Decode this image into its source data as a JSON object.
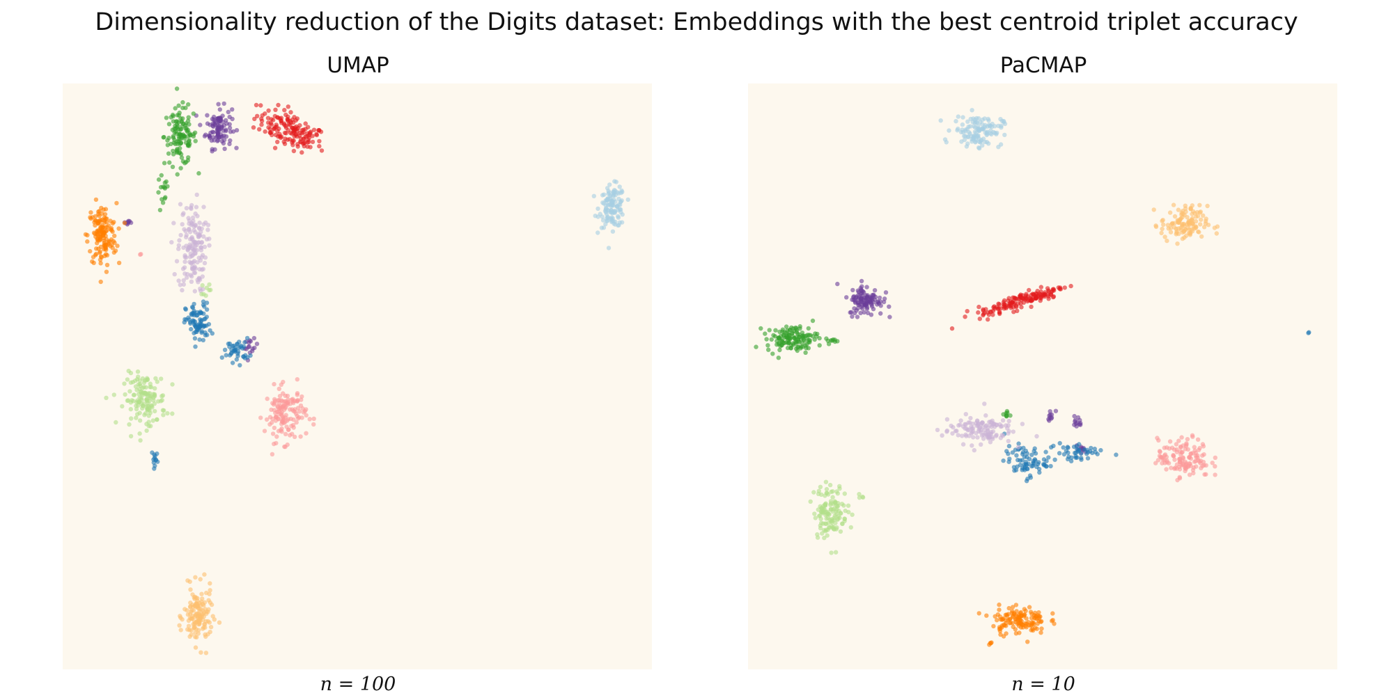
{
  "figure": {
    "title": "Dimensionality reduction of the Digits dataset: Embeddings with the best centroid triplet accuracy"
  },
  "colors": {
    "background": "#fdf8ee",
    "palette": [
      "#1f78b4",
      "#a6cee3",
      "#33a02c",
      "#b2df8a",
      "#e31a1c",
      "#fb9a99",
      "#ff7f00",
      "#fdbf6f",
      "#6a3d9a",
      "#cab2d6"
    ]
  },
  "chart_data": [
    {
      "type": "scatter",
      "title": "UMAP",
      "xlabel": "n = 100",
      "ylabel": "",
      "xlim": [
        0,
        100
      ],
      "ylim": [
        0,
        100
      ],
      "grid": false,
      "legend": "none",
      "series": [
        {
          "color": "#e31a1c",
          "clusters": [
            {
              "cx": 38.5,
              "cy": 92,
              "rx": 5.5,
              "ry": 2.6,
              "n": 150,
              "rot": -25
            }
          ]
        },
        {
          "color": "#6a3d9a",
          "clusters": [
            {
              "cx": 26.5,
              "cy": 92.5,
              "rx": 2.0,
              "ry": 3.2,
              "n": 100
            },
            {
              "cx": 32,
              "cy": 55,
              "rx": 1.0,
              "ry": 1.2,
              "n": 15
            },
            {
              "cx": 11,
              "cy": 76.3,
              "rx": 0.8,
              "ry": 0.5,
              "n": 8
            }
          ]
        },
        {
          "color": "#33a02c",
          "clusters": [
            {
              "cx": 20,
              "cy": 91,
              "rx": 2.5,
              "ry": 4.5,
              "n": 120
            },
            {
              "cx": 17,
              "cy": 81,
              "rx": 0.9,
              "ry": 3.2,
              "n": 15
            }
          ]
        },
        {
          "color": "#a6cee3",
          "clusters": [
            {
              "cx": 93.3,
              "cy": 79,
              "rx": 2.0,
              "ry": 3.2,
              "n": 120
            }
          ]
        },
        {
          "color": "#ff7f00",
          "clusters": [
            {
              "cx": 6.7,
              "cy": 74,
              "rx": 2.2,
              "ry": 5.0,
              "n": 140
            }
          ]
        },
        {
          "color": "#cab2d6",
          "clusters": [
            {
              "cx": 22,
              "cy": 72,
              "rx": 2.2,
              "ry": 7.0,
              "n": 150
            }
          ]
        },
        {
          "color": "#1f78b4",
          "clusters": [
            {
              "cx": 23,
              "cy": 59,
              "rx": 1.9,
              "ry": 3.2,
              "n": 80
            },
            {
              "cx": 29.5,
              "cy": 54.5,
              "rx": 2.0,
              "ry": 1.8,
              "n": 40
            },
            {
              "cx": 15.7,
              "cy": 36,
              "rx": 0.5,
              "ry": 1.5,
              "n": 12
            }
          ]
        },
        {
          "color": "#b2df8a",
          "clusters": [
            {
              "cx": 14,
              "cy": 46,
              "rx": 3.2,
              "ry": 4.0,
              "n": 140
            },
            {
              "cx": 24.4,
              "cy": 65,
              "rx": 0.7,
              "ry": 1.0,
              "n": 8
            }
          ]
        },
        {
          "color": "#fb9a99",
          "clusters": [
            {
              "cx": 37.8,
              "cy": 43.5,
              "rx": 3.2,
              "ry": 4.2,
              "n": 140
            },
            {
              "cx": 13,
              "cy": 71,
              "rx": 0.3,
              "ry": 0.3,
              "n": 2
            }
          ]
        },
        {
          "color": "#fdbf6f",
          "clusters": [
            {
              "cx": 23,
              "cy": 9,
              "rx": 2.2,
              "ry": 4.5,
              "n": 140
            }
          ]
        }
      ]
    },
    {
      "type": "scatter",
      "title": "PaCMAP",
      "xlabel": "n = 10",
      "ylabel": "",
      "xlim": [
        0,
        100
      ],
      "ylim": [
        0,
        100
      ],
      "grid": false,
      "legend": "none",
      "series": [
        {
          "color": "#a6cee3",
          "clusters": [
            {
              "cx": 39,
              "cy": 92,
              "rx": 3.8,
              "ry": 2.4,
              "n": 120
            }
          ]
        },
        {
          "color": "#fdbf6f",
          "clusters": [
            {
              "cx": 74,
              "cy": 76,
              "rx": 3.6,
              "ry": 2.8,
              "n": 120
            }
          ]
        },
        {
          "color": "#e31a1c",
          "clusters": [
            {
              "cx": 46.5,
              "cy": 63,
              "rx": 7.0,
              "ry": 1.1,
              "n": 150,
              "rot": 18
            }
          ]
        },
        {
          "color": "#6a3d9a",
          "clusters": [
            {
              "cx": 20,
              "cy": 63,
              "rx": 2.6,
              "ry": 2.4,
              "n": 110
            },
            {
              "cx": 51.5,
              "cy": 43.5,
              "rx": 1.2,
              "ry": 0.7,
              "n": 10
            },
            {
              "cx": 55.8,
              "cy": 42.2,
              "rx": 0.7,
              "ry": 1.0,
              "n": 12
            },
            {
              "cx": 56.5,
              "cy": 37.5,
              "rx": 0.9,
              "ry": 0.6,
              "n": 10
            }
          ]
        },
        {
          "color": "#33a02c",
          "clusters": [
            {
              "cx": 7.5,
              "cy": 56.5,
              "rx": 4.0,
              "ry": 2.0,
              "n": 130
            },
            {
              "cx": 14.5,
              "cy": 56,
              "rx": 0.7,
              "ry": 0.5,
              "n": 8
            },
            {
              "cx": 43.7,
              "cy": 43.5,
              "rx": 0.9,
              "ry": 0.5,
              "n": 8
            }
          ]
        },
        {
          "color": "#1f78b4",
          "clusters": [
            {
              "cx": 95.2,
              "cy": 57.5,
              "rx": 0.2,
              "ry": 0.2,
              "n": 2
            },
            {
              "cx": 47,
              "cy": 35.5,
              "rx": 3.2,
              "ry": 2.4,
              "n": 70
            },
            {
              "cx": 55.5,
              "cy": 37,
              "rx": 4.5,
              "ry": 1.6,
              "n": 45
            }
          ]
        },
        {
          "color": "#cab2d6",
          "clusters": [
            {
              "cx": 39,
              "cy": 41,
              "rx": 5.5,
              "ry": 2.2,
              "n": 120
            }
          ]
        },
        {
          "color": "#fb9a99",
          "clusters": [
            {
              "cx": 74,
              "cy": 36,
              "rx": 4.0,
              "ry": 3.0,
              "n": 130
            }
          ]
        },
        {
          "color": "#b2df8a",
          "clusters": [
            {
              "cx": 14,
              "cy": 27,
              "rx": 2.6,
              "ry": 4.2,
              "n": 130
            },
            {
              "cx": 19,
              "cy": 29.5,
              "rx": 0.6,
              "ry": 0.3,
              "n": 4
            }
          ]
        },
        {
          "color": "#ff7f00",
          "clusters": [
            {
              "cx": 46,
              "cy": 8.5,
              "rx": 4.2,
              "ry": 2.2,
              "n": 130
            },
            {
              "cx": 41,
              "cy": 4.5,
              "rx": 0.7,
              "ry": 0.3,
              "n": 4
            }
          ]
        }
      ]
    }
  ]
}
